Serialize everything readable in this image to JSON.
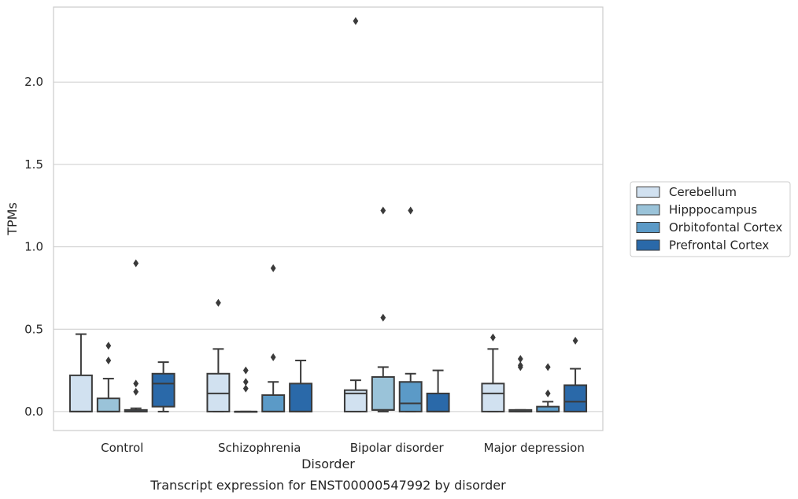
{
  "chart_data": {
    "type": "box",
    "xlabel": "Disorder",
    "ylabel": "TPMs",
    "caption": "Transcript expression for ENST00000547992 by disorder",
    "categories": [
      "Control",
      "Schizophrenia",
      "Bipolar disorder",
      "Major depression"
    ],
    "ylim": [
      -0.115,
      2.455
    ],
    "yticks": [
      0.0,
      0.5,
      1.0,
      1.5,
      2.0
    ],
    "yticklabels": [
      "0.0",
      "0.5",
      "1.0",
      "1.5",
      "2.0"
    ],
    "grid": "horizontal",
    "legend_placement": "right-center",
    "series": [
      {
        "name": "Cerebellum",
        "color": "#d1e1f0",
        "boxes": [
          {
            "q1": 0.0,
            "median": 0.0,
            "q3": 0.22,
            "whisker_low": 0.0,
            "whisker_high": 0.47,
            "outliers": []
          },
          {
            "q1": 0.0,
            "median": 0.11,
            "q3": 0.23,
            "whisker_low": 0.0,
            "whisker_high": 0.38,
            "outliers": [
              0.66
            ]
          },
          {
            "q1": 0.0,
            "median": 0.11,
            "q3": 0.13,
            "whisker_low": 0.0,
            "whisker_high": 0.19,
            "outliers": [
              2.37
            ]
          },
          {
            "q1": 0.0,
            "median": 0.11,
            "q3": 0.17,
            "whisker_low": 0.0,
            "whisker_high": 0.38,
            "outliers": [
              0.45
            ]
          }
        ]
      },
      {
        "name": "Hipppocampus",
        "color": "#9ac3d9",
        "boxes": [
          {
            "q1": 0.0,
            "median": 0.0,
            "q3": 0.08,
            "whisker_low": 0.0,
            "whisker_high": 0.2,
            "outliers": [
              0.31,
              0.4
            ]
          },
          {
            "q1": 0.0,
            "median": 0.0,
            "q3": 0.0,
            "whisker_low": 0.0,
            "whisker_high": 0.0,
            "outliers": [
              0.14,
              0.18,
              0.25
            ]
          },
          {
            "q1": 0.01,
            "median": 0.01,
            "q3": 0.21,
            "whisker_low": 0.0,
            "whisker_high": 0.27,
            "outliers": [
              0.57,
              1.22
            ]
          },
          {
            "q1": 0.0,
            "median": 0.0,
            "q3": 0.01,
            "whisker_low": 0.0,
            "whisker_high": 0.01,
            "outliers": [
              0.27,
              0.28,
              0.32
            ]
          }
        ]
      },
      {
        "name": "Orbitofontal Cortex",
        "color": "#5b9ac7",
        "boxes": [
          {
            "q1": 0.0,
            "median": 0.0,
            "q3": 0.01,
            "whisker_low": 0.0,
            "whisker_high": 0.02,
            "outliers": [
              0.12,
              0.17,
              0.9
            ]
          },
          {
            "q1": 0.0,
            "median": 0.0,
            "q3": 0.1,
            "whisker_low": 0.0,
            "whisker_high": 0.18,
            "outliers": [
              0.33,
              0.87
            ]
          },
          {
            "q1": 0.0,
            "median": 0.05,
            "q3": 0.18,
            "whisker_low": 0.0,
            "whisker_high": 0.23,
            "outliers": [
              1.22
            ]
          },
          {
            "q1": 0.0,
            "median": 0.0,
            "q3": 0.03,
            "whisker_low": 0.0,
            "whisker_high": 0.06,
            "outliers": [
              0.11,
              0.27
            ]
          }
        ]
      },
      {
        "name": "Prefrontal Cortex",
        "color": "#2a69a9",
        "boxes": [
          {
            "q1": 0.03,
            "median": 0.17,
            "q3": 0.23,
            "whisker_low": 0.0,
            "whisker_high": 0.3,
            "outliers": []
          },
          {
            "q1": 0.0,
            "median": 0.0,
            "q3": 0.17,
            "whisker_low": 0.0,
            "whisker_high": 0.31,
            "outliers": []
          },
          {
            "q1": 0.0,
            "median": 0.0,
            "q3": 0.11,
            "whisker_low": 0.0,
            "whisker_high": 0.25,
            "outliers": []
          },
          {
            "q1": 0.0,
            "median": 0.06,
            "q3": 0.16,
            "whisker_low": 0.0,
            "whisker_high": 0.26,
            "outliers": [
              0.43
            ]
          }
        ]
      }
    ]
  }
}
